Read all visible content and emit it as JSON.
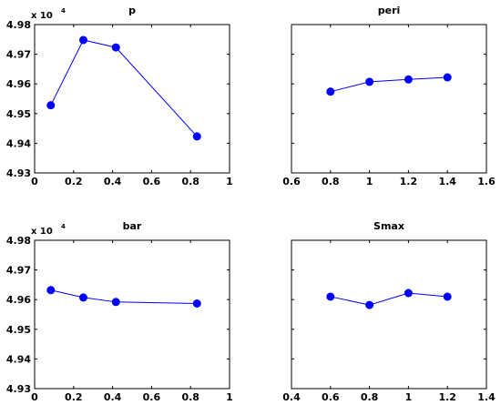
{
  "chart_data": [
    {
      "type": "line",
      "title": "p",
      "multiplier_base": "x 10",
      "multiplier_exp": "4",
      "xlim": [
        0,
        1
      ],
      "ylim": [
        49300,
        49800
      ],
      "xticks": [
        "0",
        "0.2",
        "0.4",
        "0.6",
        "0.8",
        "1"
      ],
      "yticks": [
        "4.93",
        "4.94",
        "4.95",
        "4.96",
        "4.97",
        "4.98"
      ],
      "x": [
        0.083,
        0.25,
        0.417,
        0.833
      ],
      "y": [
        49528,
        49748,
        49723,
        49423
      ],
      "color": "#0000ff"
    },
    {
      "type": "line",
      "title": "peri",
      "xlim": [
        0.6,
        1.6
      ],
      "ylim": [
        49300,
        49800
      ],
      "xticks": [
        "0.6",
        "0.8",
        "1",
        "1.2",
        "1.4",
        "1.6"
      ],
      "x": [
        0.8,
        1.0,
        1.2,
        1.4
      ],
      "y": [
        49574,
        49607,
        49615,
        49622
      ],
      "color": "#0000ff"
    },
    {
      "type": "line",
      "title": "bar",
      "multiplier_base": "x 10",
      "multiplier_exp": "4",
      "xlim": [
        0,
        1
      ],
      "ylim": [
        49300,
        49800
      ],
      "xticks": [
        "0",
        "0.2",
        "0.4",
        "0.6",
        "0.8",
        "1"
      ],
      "yticks": [
        "4.93",
        "4.94",
        "4.95",
        "4.96",
        "4.97",
        "4.98"
      ],
      "x": [
        0.083,
        0.25,
        0.417,
        0.833
      ],
      "y": [
        49632,
        49607,
        49592,
        49587
      ],
      "color": "#0000ff"
    },
    {
      "type": "line",
      "title": "Smax",
      "xlim": [
        0.4,
        1.4
      ],
      "ylim": [
        49300,
        49800
      ],
      "xticks": [
        "0.4",
        "0.6",
        "0.8",
        "1",
        "1.2",
        "1.4"
      ],
      "x": [
        0.6,
        0.8,
        1.0,
        1.2
      ],
      "y": [
        49610,
        49582,
        49622,
        49610
      ],
      "color": "#0000ff"
    }
  ]
}
